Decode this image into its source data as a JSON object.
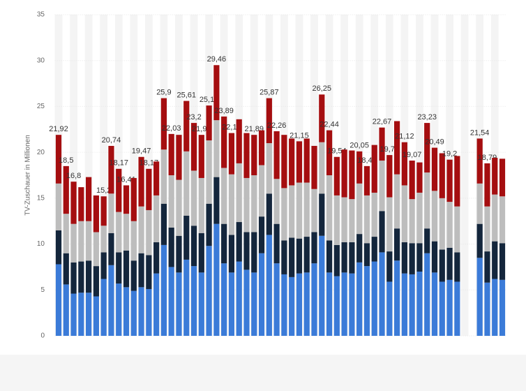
{
  "chart_data": {
    "type": "stacked_bar",
    "y_label": "TV-Zuschauer in Millionen",
    "ylim": [
      0,
      35
    ],
    "yticks": [
      0,
      5,
      10,
      15,
      20,
      25,
      30,
      35
    ],
    "grid": true,
    "categories": [
      null,
      null,
      null,
      null,
      null,
      null,
      null,
      null,
      null,
      null,
      null,
      null,
      null,
      null,
      null,
      null,
      null,
      null,
      null,
      null,
      null,
      null,
      null,
      null,
      null,
      null,
      null,
      null,
      null,
      null,
      null,
      null,
      null,
      null,
      null,
      null,
      null,
      null,
      null,
      null,
      null,
      null,
      null,
      null,
      null,
      null,
      null,
      null,
      null,
      null,
      null,
      null,
      null,
      null,
      null,
      null,
      null,
      null,
      null,
      null
    ],
    "series": [
      {
        "color": "#3b7bd8",
        "values": [
          7.8,
          5.6,
          4.6,
          4.7,
          4.7,
          4.3,
          6.2,
          7.7,
          5.7,
          5.3,
          4.9,
          5.3,
          5.1,
          6.8,
          9.9,
          7.5,
          6.9,
          8.3,
          7.6,
          6.9,
          9.8,
          12.2,
          7.9,
          6.9,
          8.1,
          7.2,
          6.9,
          9.0,
          11.0,
          7.9,
          6.7,
          6.4,
          6.8,
          6.9,
          7.9,
          10.9,
          6.9,
          6.5,
          6.9,
          6.8,
          8.0,
          7.6,
          8.1,
          9.1,
          5.9,
          8.2,
          6.8,
          6.7,
          7.0,
          9.0,
          6.9,
          5.9,
          6.1,
          5.9,
          null,
          null,
          8.5,
          5.8,
          6.2,
          6.1
        ]
      },
      {
        "color": "#14263c",
        "values": [
          3.7,
          3.4,
          3.4,
          3.4,
          3.5,
          3.3,
          2.9,
          3.5,
          3.4,
          4.0,
          3.3,
          3.7,
          3.7,
          3.4,
          4.5,
          4.3,
          4.0,
          4.8,
          4.4,
          4.3,
          4.6,
          5.1,
          4.3,
          4.1,
          4.3,
          4.1,
          4.4,
          4.0,
          4.5,
          4.3,
          3.7,
          4.3,
          3.8,
          3.9,
          3.4,
          4.6,
          3.5,
          3.4,
          3.3,
          3.4,
          3.1,
          2.5,
          2.7,
          4.5,
          3.3,
          3.5,
          3.4,
          3.4,
          3.1,
          2.7,
          3.4,
          3.5,
          3.5,
          3.2,
          null,
          null,
          3.7,
          3.4,
          4.1,
          4.0
        ]
      },
      {
        "color": "#bdbdbd",
        "values": [
          5.1,
          4.3,
          4.2,
          4.4,
          4.3,
          3.7,
          2.9,
          4.3,
          4.4,
          4.0,
          4.3,
          5.1,
          4.9,
          5.1,
          5.9,
          5.7,
          6.1,
          7.0,
          6.0,
          6.0,
          6.9,
          6.2,
          6.1,
          6.6,
          6.4,
          5.9,
          6.2,
          5.6,
          5.5,
          4.9,
          5.7,
          5.7,
          6.1,
          5.9,
          4.7,
          5.6,
          7.1,
          5.4,
          4.9,
          4.7,
          5.5,
          5.2,
          4.8,
          5.5,
          5.9,
          5.9,
          6.2,
          4.8,
          5.5,
          6.1,
          5.5,
          5.6,
          5.0,
          5.0,
          null,
          null,
          4.4,
          4.9,
          5.1,
          5.1
        ]
      },
      {
        "color": "#a50e10",
        "values": [
          5.3,
          5.2,
          4.6,
          3.7,
          4.8,
          4.0,
          3.2,
          5.2,
          4.7,
          3.1,
          4.7,
          5.4,
          4.5,
          3.7,
          5.6,
          4.5,
          4.9,
          5.5,
          5.2,
          4.7,
          3.8,
          6.0,
          5.6,
          4.5,
          4.8,
          4.9,
          4.4,
          3.8,
          4.9,
          5.2,
          5.8,
          5.1,
          4.5,
          4.8,
          4.7,
          5.2,
          4.9,
          4.2,
          5.2,
          5.3,
          3.5,
          3.2,
          5.2,
          3.6,
          4.6,
          5.8,
          4.7,
          4.2,
          3.3,
          5.4,
          4.7,
          4.9,
          4.6,
          5.5,
          null,
          null,
          4.9,
          4.7,
          4.0,
          4.1
        ]
      }
    ],
    "total_labels": [
      "21,92",
      "18,5",
      "16,8",
      null,
      null,
      null,
      "15,2",
      "20,74",
      "18,17",
      "16,41",
      null,
      "19,47",
      "18,17",
      null,
      "25,9",
      "22,03",
      null,
      "25,61",
      "23,2",
      "21,93",
      "25,12",
      "29,46",
      "23,89",
      "22,13",
      null,
      null,
      "21,89",
      null,
      "25,87",
      "22,26",
      null,
      null,
      "21,15",
      null,
      null,
      "26,25",
      "22,44",
      "19,54",
      null,
      null,
      "20,05",
      "18,45",
      null,
      "22,67",
      "19,73",
      null,
      "21,12",
      "19,07",
      null,
      "23,23",
      "20,49",
      null,
      "19,2",
      null,
      null,
      null,
      "21,54",
      "18,79",
      null,
      null
    ]
  }
}
